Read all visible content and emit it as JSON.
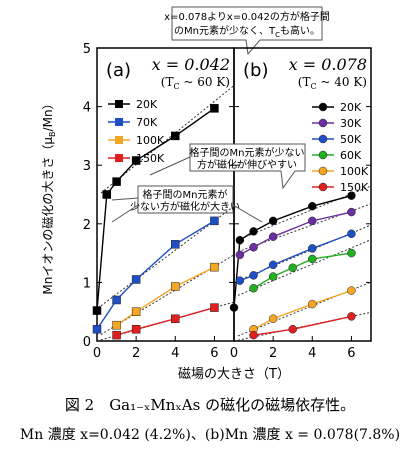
{
  "top_note": {
    "line1": "x=0.078よりx=0.042の方が格子間",
    "line2": "のMn元素が少なく、T",
    "line2_sub": "C",
    "line2_end": "も高い。"
  },
  "caption": {
    "line1": "図 2　Ga₁₋ₓMnₓAs の磁化の磁場依存性。",
    "line2": "Mn 濃度 x=0.042 (4.2%)、(b)Mn 濃度 x = 0.078(7.8%)"
  },
  "chart_data": [
    {
      "type": "line",
      "panel": "(a)",
      "title": "x = 0.042",
      "subtitle_prefix": "(T",
      "subtitle_sub": "C",
      "subtitle_rest": " ~ 60 K)",
      "xlabel": "",
      "ylabel": "Mnイオンの磁化の大きさ（μB/Mn）",
      "ylabel_parts": {
        "main": "Mnイオンの磁化の大きさ（μ",
        "sub": "B",
        "end": "/Mn）"
      },
      "xlim": [
        0,
        7
      ],
      "ylim": [
        0,
        5
      ],
      "xticks": [
        "0",
        "2",
        "4",
        "6"
      ],
      "yticks": [
        "0",
        "1",
        "2",
        "3",
        "4",
        "5"
      ],
      "legend_position": "top-left",
      "series": [
        {
          "name": "20K",
          "color": "#000000",
          "x": [
            0,
            0.5,
            1,
            2,
            4,
            6
          ],
          "y": [
            0.52,
            2.5,
            2.72,
            3.08,
            3.5,
            3.97
          ],
          "fit": [
            2.47,
            0.27
          ]
        },
        {
          "name": "70K",
          "color": "#1f4fc4",
          "x": [
            0,
            1,
            2,
            4,
            6
          ],
          "y": [
            0.2,
            0.7,
            1.05,
            1.65,
            2.05
          ],
          "fit": [
            0.55,
            0.25
          ]
        },
        {
          "name": "100K",
          "color": "#f5a623",
          "x": [
            1,
            2,
            4,
            6
          ],
          "y": [
            0.27,
            0.5,
            0.93,
            1.26
          ],
          "fit": [
            0.07,
            0.2
          ]
        },
        {
          "name": "150K",
          "color": "#e02020",
          "x": [
            1,
            2,
            4,
            6
          ],
          "y": [
            0.1,
            0.2,
            0.38,
            0.57
          ],
          "fit": [
            0.0,
            0.095
          ]
        }
      ],
      "annotations": [
        {
          "line1": "格子間のMn元素が少ない",
          "line2": "方が磁化が伸びやすい"
        },
        {
          "line1": "格子間のMn元素が",
          "line2": "少ない方が磁化が大きい"
        }
      ]
    },
    {
      "type": "line",
      "panel": "(b)",
      "title": "x = 0.078",
      "subtitle_prefix": "(T",
      "subtitle_sub": "C",
      "subtitle_rest": " ~ 40 K)",
      "xlabel": "磁場の大きさ（T）",
      "xlim": [
        0,
        7
      ],
      "ylim": [
        0,
        5
      ],
      "xticks": [
        "0",
        "2",
        "4",
        "6"
      ],
      "yticks": [],
      "legend_position": "right",
      "series": [
        {
          "name": "20K",
          "color": "#000000",
          "x": [
            0,
            0.3,
            1,
            2,
            4,
            6
          ],
          "y": [
            0.57,
            1.72,
            1.87,
            2.05,
            2.3,
            2.48
          ],
          "fit": [
            1.7,
            0.135
          ]
        },
        {
          "name": "30K",
          "color": "#6a2fa0",
          "x": [
            0.3,
            1,
            2,
            4,
            6
          ],
          "y": [
            1.47,
            1.6,
            1.78,
            2.05,
            2.2
          ],
          "fit": [
            1.5,
            0.12
          ]
        },
        {
          "name": "50K",
          "color": "#1f4fc4",
          "x": [
            0.3,
            1,
            2,
            4,
            6
          ],
          "y": [
            1.03,
            1.12,
            1.3,
            1.58,
            1.83
          ],
          "fit": [
            1.0,
            0.14
          ]
        },
        {
          "name": "60K",
          "color": "#22b022",
          "x": [
            1,
            2,
            3,
            4,
            6
          ],
          "y": [
            0.9,
            1.1,
            1.25,
            1.4,
            1.5
          ],
          "fit": [
            0.75,
            0.14
          ]
        },
        {
          "name": "100K",
          "color": "#f5a623",
          "x": [
            1,
            2,
            4,
            6
          ],
          "y": [
            0.2,
            0.38,
            0.63,
            0.86
          ],
          "fit": [
            0.06,
            0.135
          ]
        },
        {
          "name": "150K",
          "color": "#e02020",
          "x": [
            1,
            3,
            6
          ],
          "y": [
            0.1,
            0.2,
            0.42
          ],
          "fit": [
            0.0,
            0.07
          ]
        }
      ]
    }
  ]
}
